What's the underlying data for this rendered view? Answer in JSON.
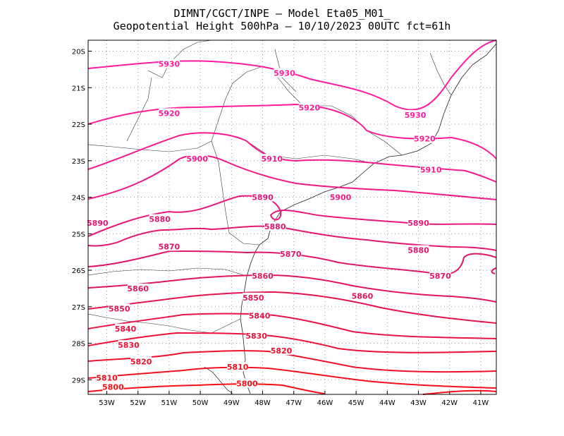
{
  "title": {
    "line1": "DIMNT/CGCT/INPE –  Model Eta05_M01_",
    "line2": "Geopotential Height 500hPa –  10/10/2023 00UTC fct=61h"
  },
  "map": {
    "lon_range": [
      -53.6,
      -40.5
    ],
    "lat_range": [
      -29.4,
      -19.7
    ],
    "lon_ticks": [
      {
        "value": -53,
        "label": "53W"
      },
      {
        "value": -52,
        "label": "52W"
      },
      {
        "value": -51,
        "label": "51W"
      },
      {
        "value": -50,
        "label": "50W"
      },
      {
        "value": -49,
        "label": "49W"
      },
      {
        "value": -48,
        "label": "48W"
      },
      {
        "value": -47,
        "label": "47W"
      },
      {
        "value": -46,
        "label": "46W"
      },
      {
        "value": -45,
        "label": "45W"
      },
      {
        "value": -44,
        "label": "44W"
      },
      {
        "value": -43,
        "label": "43W"
      },
      {
        "value": -42,
        "label": "42W"
      },
      {
        "value": -41,
        "label": "41W"
      }
    ],
    "lat_ticks": [
      {
        "value": -20,
        "label": "20S"
      },
      {
        "value": -21,
        "label": "21S"
      },
      {
        "value": -22,
        "label": "22S"
      },
      {
        "value": -23,
        "label": "23S"
      },
      {
        "value": -24,
        "label": "24S"
      },
      {
        "value": -25,
        "label": "25S"
      },
      {
        "value": -26,
        "label": "26S"
      },
      {
        "value": -27,
        "label": "27S"
      },
      {
        "value": -28,
        "label": "28S"
      },
      {
        "value": -29,
        "label": "29S"
      }
    ],
    "grid": true,
    "contours": [
      {
        "level": 5930,
        "label": "5930",
        "color": "#ff1ca0",
        "labels_at": [
          [
            -51.0,
            -20.35
          ],
          [
            -47.3,
            -20.6
          ],
          [
            -43.1,
            -21.75
          ]
        ]
      },
      {
        "level": 5920,
        "label": "5920",
        "color": "#ff1a98",
        "labels_at": [
          [
            -51.0,
            -21.7
          ],
          [
            -46.5,
            -21.55
          ],
          [
            -42.8,
            -22.4
          ]
        ]
      },
      {
        "level": 5910,
        "label": "5910",
        "color": "#f8198e",
        "labels_at": [
          [
            -47.7,
            -22.95
          ],
          [
            -42.6,
            -23.25
          ]
        ]
      },
      {
        "level": 5900,
        "label": "5900",
        "color": "#f01884",
        "labels_at": [
          [
            -50.1,
            -22.95
          ],
          [
            -45.5,
            -24.0
          ]
        ]
      },
      {
        "level": 5890,
        "label": "5890",
        "color": "#ea177a",
        "labels_at": [
          [
            -53.3,
            -24.7
          ],
          [
            -48.0,
            -24.0
          ],
          [
            -43.0,
            -24.7
          ]
        ]
      },
      {
        "level": 5880,
        "label": "5880",
        "color": "#e41670",
        "labels_at": [
          [
            -51.3,
            -24.6
          ],
          [
            -47.6,
            -24.8
          ],
          [
            -43.0,
            -25.45
          ]
        ]
      },
      {
        "level": 5870,
        "label": "5870",
        "color": "#e01566",
        "labels_at": [
          [
            -51.0,
            -25.35
          ],
          [
            -47.1,
            -25.55
          ],
          [
            -42.3,
            -26.15
          ]
        ]
      },
      {
        "level": 5860,
        "label": "5860",
        "color": "#e0145c",
        "labels_at": [
          [
            -52.0,
            -26.5
          ],
          [
            -48.0,
            -26.15
          ],
          [
            -44.8,
            -26.7
          ]
        ]
      },
      {
        "level": 5850,
        "label": "5850",
        "color": "#e41350",
        "labels_at": [
          [
            -52.6,
            -27.05
          ],
          [
            -48.3,
            -26.75
          ]
        ]
      },
      {
        "level": 5840,
        "label": "5840",
        "color": "#e81244",
        "labels_at": [
          [
            -52.4,
            -27.6
          ],
          [
            -48.1,
            -27.25
          ]
        ]
      },
      {
        "level": 5830,
        "label": "5830",
        "color": "#ec1138",
        "labels_at": [
          [
            -52.3,
            -28.05
          ],
          [
            -48.2,
            -27.8
          ]
        ]
      },
      {
        "level": 5820,
        "label": "5820",
        "color": "#f0102c",
        "labels_at": [
          [
            -51.9,
            -28.5
          ],
          [
            -47.4,
            -28.2
          ]
        ]
      },
      {
        "level": 5810,
        "label": "5810",
        "color": "#f40f20",
        "labels_at": [
          [
            -53.0,
            -28.95
          ],
          [
            -48.8,
            -28.65
          ]
        ]
      },
      {
        "level": 5800,
        "label": "5800",
        "color": "#f80e14",
        "labels_at": [
          [
            -52.8,
            -29.2
          ],
          [
            -48.5,
            -29.1
          ]
        ]
      }
    ]
  }
}
